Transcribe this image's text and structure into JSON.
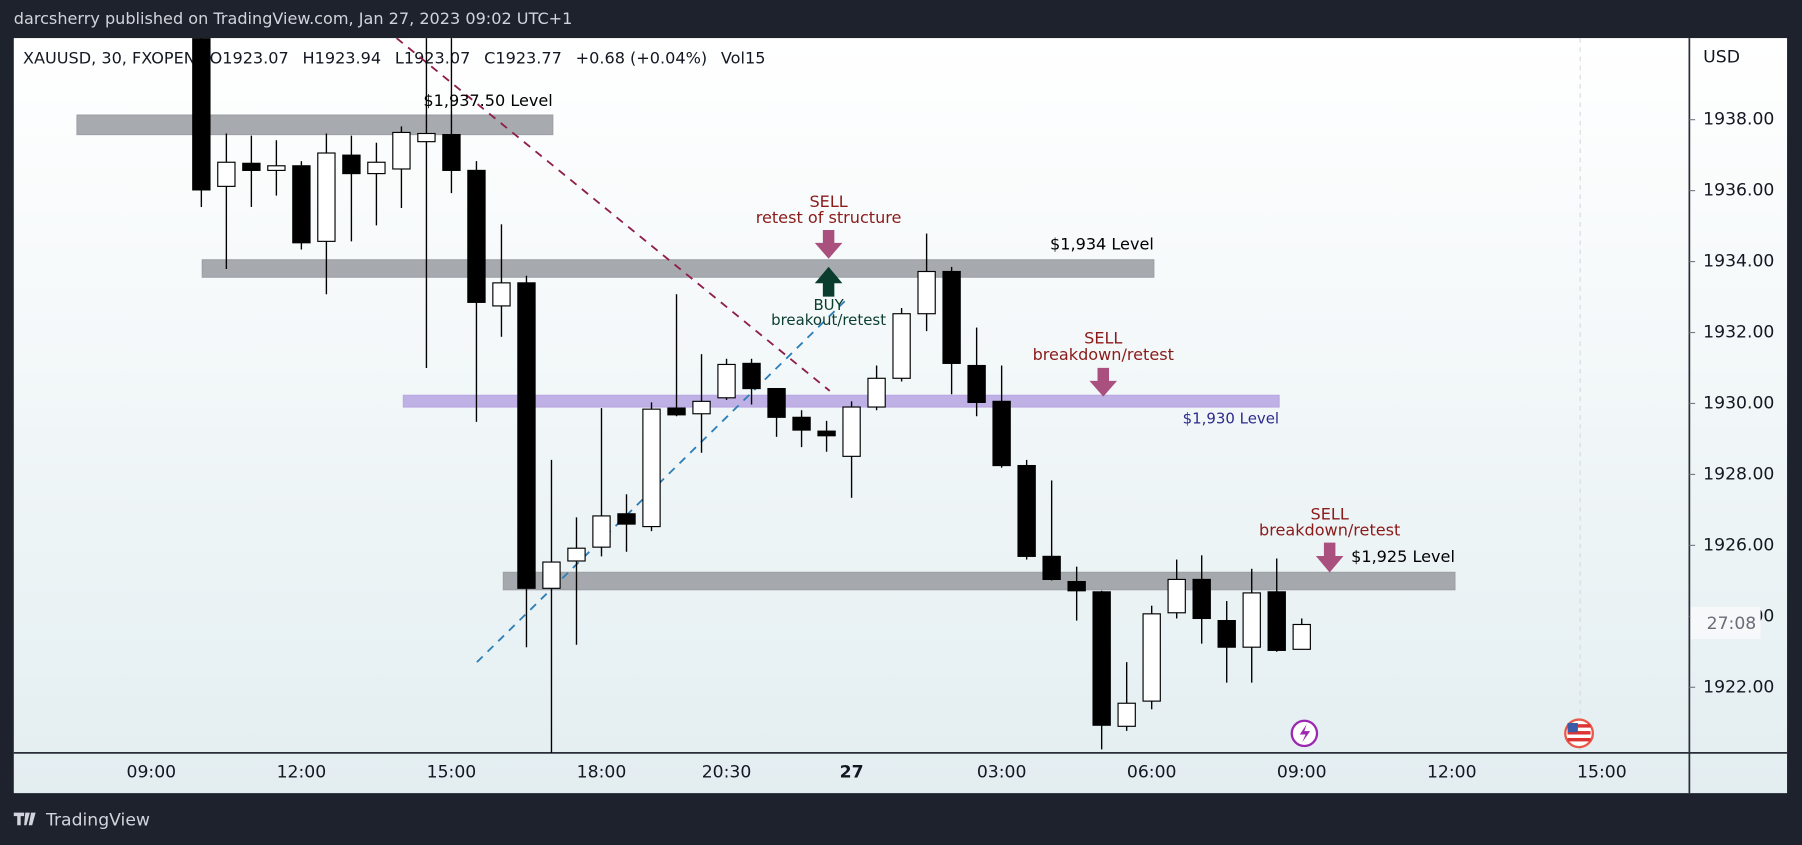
{
  "header": {
    "publisher": "darcsherry published on TradingView.com, Jan 27, 2023 09:02 UTC+1",
    "brand": "TradingView"
  },
  "chart_data": {
    "type": "candlestick",
    "symbol": "XAUUSD, 30, FXOPEN",
    "legend_values": [
      "O1923.07",
      "H1923.94",
      "L1923.07",
      "C1923.77",
      "+0.68 (+0.04%)",
      "Vol15"
    ],
    "currency": "USD",
    "countdown": "27:08",
    "up_color": "#ffffff",
    "down_color": "#000000",
    "categories": [
      null,
      null,
      null,
      null,
      null,
      "09:00",
      null,
      null,
      null,
      null,
      null,
      "12:00",
      null,
      null,
      null,
      null,
      null,
      "15:00",
      null,
      null,
      null,
      null,
      null,
      "18:00",
      null,
      null,
      null,
      null,
      "20:30",
      null,
      null,
      null,
      null,
      "27",
      null,
      null,
      null,
      null,
      null,
      "03:00",
      null,
      null,
      null,
      null,
      null,
      "06:00",
      null,
      null,
      null,
      null,
      null,
      "09:00",
      null,
      null,
      null,
      null,
      null,
      "12:00",
      null,
      null,
      null,
      null,
      null,
      "15:00",
      null,
      null,
      null
    ],
    "open": [
      null,
      null,
      null,
      null,
      null,
      null,
      null,
      1940.5,
      1936.12,
      1936.77,
      1936.57,
      1936.7,
      1934.57,
      1937.0,
      1936.48,
      1936.61,
      1937.38,
      1937.58,
      1936.57,
      1932.75,
      1933.4,
      1924.79,
      1925.56,
      1925.95,
      1926.89,
      1926.53,
      1929.87,
      1929.71,
      1930.16,
      1931.13,
      1930.42,
      1929.61,
      1929.22,
      1928.51,
      1929.9,
      1930.71,
      1932.53,
      1933.72,
      1931.07,
      1930.06,
      1928.25,
      1925.69,
      1924.98,
      1924.69,
      1920.9,
      1921.61,
      1924.1,
      1925.04,
      1923.88,
      1923.13,
      1924.69,
      1923.07,
      null,
      null,
      null,
      null,
      null,
      null,
      null,
      null,
      null,
      null,
      null,
      null,
      null,
      null,
      null
    ],
    "high": [
      null,
      null,
      null,
      null,
      null,
      null,
      null,
      1941.0,
      1937.61,
      1937.55,
      1937.42,
      1936.83,
      1937.61,
      1937.55,
      1937.35,
      1937.81,
      1940.5,
      1940.5,
      1936.83,
      1935.05,
      1933.6,
      1928.41,
      1926.79,
      1929.87,
      1927.44,
      1930.03,
      1933.08,
      1931.39,
      1931.26,
      1931.26,
      1930.42,
      1929.81,
      1929.51,
      1930.06,
      1931.07,
      1932.69,
      1934.79,
      1933.85,
      1932.14,
      1931.07,
      1928.41,
      1927.83,
      1925.4,
      1924.72,
      1922.71,
      1924.3,
      1925.6,
      1925.72,
      1924.43,
      1925.34,
      1925.63,
      1923.94,
      null,
      null,
      null,
      null,
      null,
      null,
      null,
      null,
      null,
      null,
      null,
      null,
      null,
      null,
      null
    ],
    "low": [
      null,
      null,
      null,
      null,
      null,
      null,
      null,
      1935.54,
      1933.79,
      1935.54,
      1935.86,
      1934.34,
      1933.08,
      1934.57,
      1935.02,
      1935.51,
      1931.0,
      1935.93,
      1929.48,
      1931.88,
      1923.13,
      1920.0,
      1923.2,
      1925.69,
      1925.82,
      1926.4,
      1929.64,
      1928.61,
      1930.1,
      1929.97,
      1929.06,
      1928.77,
      1928.64,
      1927.34,
      1929.81,
      1930.62,
      1932.04,
      1930.26,
      1929.64,
      1928.19,
      1925.6,
      1925.01,
      1923.88,
      1920.25,
      1920.77,
      1921.38,
      1923.94,
      1923.23,
      1922.13,
      1922.13,
      1923.0,
      1923.07,
      null,
      null,
      null,
      null,
      null,
      null,
      null,
      null,
      null,
      null,
      null,
      null,
      null,
      null,
      null
    ],
    "close": [
      null,
      null,
      null,
      null,
      null,
      null,
      null,
      1936.02,
      1936.8,
      1936.57,
      1936.7,
      1934.53,
      1937.06,
      1936.48,
      1936.8,
      1937.64,
      1937.61,
      1936.57,
      1932.85,
      1933.4,
      1924.79,
      1925.53,
      1925.92,
      1926.83,
      1926.6,
      1929.84,
      1929.68,
      1930.06,
      1931.1,
      1930.42,
      1929.61,
      1929.25,
      1929.09,
      1929.9,
      1930.71,
      1932.53,
      1933.72,
      1931.13,
      1930.03,
      1928.25,
      1925.69,
      1925.04,
      1924.72,
      1920.93,
      1921.55,
      1924.07,
      1925.04,
      1923.94,
      1923.13,
      1924.66,
      1923.04,
      1923.77,
      null,
      null,
      null,
      null,
      null,
      null,
      null,
      null,
      null,
      null,
      null,
      null,
      null,
      null,
      null
    ],
    "ylim": [
      1920.15,
      1940.3
    ],
    "yticks": [
      {
        "value": 1922,
        "label": "1922.00"
      },
      {
        "value": 1924,
        "label": "1924.00"
      },
      {
        "value": 1926,
        "label": "1926.00"
      },
      {
        "value": 1928,
        "label": "1928.00"
      },
      {
        "value": 1930,
        "label": "1930.00"
      },
      {
        "value": 1932,
        "label": "1932.00"
      },
      {
        "value": 1934,
        "label": "1934.00"
      },
      {
        "value": 1936,
        "label": "1936.00"
      },
      {
        "value": 1938,
        "label": "1938.00"
      }
    ],
    "zones": [
      {
        "label": "$1,937.50 Level",
        "low": 1937.58,
        "high": 1938.13,
        "color": "#9da1a6",
        "label_color": "#000000"
      },
      {
        "label": "$1,934 Level",
        "low": 1933.56,
        "high": 1934.05,
        "color": "#9da1a6",
        "label_color": "#000000"
      },
      {
        "label": "$1,930 Level",
        "low": 1929.9,
        "high": 1930.23,
        "color": "#b9a8e2",
        "label_color": "#2e2a8c"
      },
      {
        "label": "$1,925 Level",
        "low": 1924.75,
        "high": 1925.24,
        "color": "#9da1a6",
        "label_color": "#000000"
      }
    ],
    "signals": [
      {
        "label": "SELL",
        "detail": "retest of structure",
        "direction": "down",
        "color": "#8b1a1a",
        "arrow_color": "#a9507e"
      },
      {
        "label": "BUY",
        "detail": "breakout/retest",
        "direction": "up",
        "color": "#0b3d2e",
        "arrow_color": "#0b3d2e"
      },
      {
        "label": "SELL",
        "detail": "breakdown/retest",
        "direction": "down",
        "color": "#8b1a1a",
        "arrow_color": "#a9507e"
      },
      {
        "label": "SELL",
        "detail": "breakdown/retest",
        "direction": "down",
        "color": "#8b1a1a",
        "arrow_color": "#a9507e"
      }
    ]
  }
}
